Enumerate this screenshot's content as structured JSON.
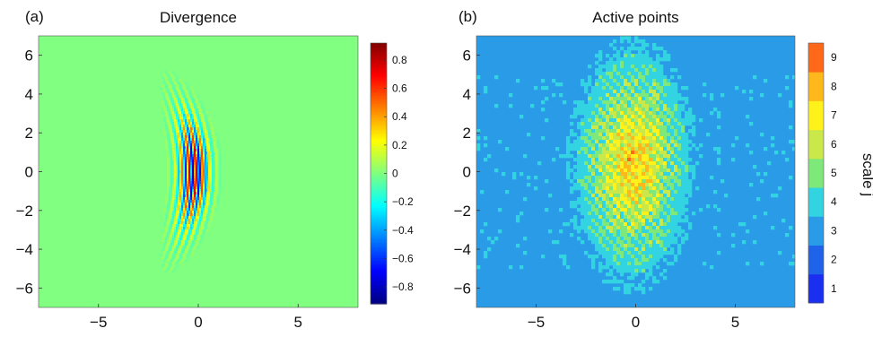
{
  "chart_data": [
    {
      "type": "heatmap",
      "panel_label": "(a)",
      "title": "Divergence",
      "xlabel": "",
      "ylabel": "",
      "xlim": [
        -8,
        8
      ],
      "ylim": [
        -7,
        7
      ],
      "x_ticks": [
        -5,
        0,
        5
      ],
      "y_ticks": [
        6,
        4,
        2,
        0,
        -2,
        -4,
        -6
      ],
      "colormap": "jet",
      "background_value": 0,
      "colorbar": {
        "label": "",
        "range": [
          -0.92,
          0.92
        ],
        "ticks": [
          0.8,
          0.6,
          0.4,
          0.2,
          0,
          -0.2,
          -0.4,
          -0.6,
          -0.8
        ]
      },
      "feature": {
        "description": "curved wave packet",
        "center": [
          -0.2,
          0
        ],
        "max": 0.9,
        "min": -0.9,
        "x_extent": [
          -1.7,
          1.2
        ],
        "y_extent": [
          -4.8,
          4.8
        ],
        "wavelength": 0.35
      }
    },
    {
      "type": "heatmap",
      "panel_label": "(b)",
      "title": "Active points",
      "xlabel": "",
      "ylabel": "",
      "xlim": [
        -8,
        8
      ],
      "ylim": [
        -7,
        7
      ],
      "x_ticks": [
        -5,
        0,
        5
      ],
      "y_ticks": [
        6,
        4,
        2,
        0,
        -2,
        -4,
        -6
      ],
      "colorbar": {
        "label": "scale j",
        "levels": [
          1,
          2,
          3,
          4,
          5,
          6,
          7,
          8,
          9
        ],
        "colors": [
          "#1a2ff0",
          "#1f64e8",
          "#2a9be6",
          "#33d4e2",
          "#7ee87a",
          "#cbe84a",
          "#fff21a",
          "#ffb81c",
          "#ff6818"
        ]
      },
      "background_level": 3,
      "blob": {
        "center": [
          -0.1,
          0
        ],
        "peak_level": 8,
        "x_extent": [
          -2.8,
          2.5
        ],
        "y_extent": [
          -5,
          5.8
        ]
      }
    }
  ]
}
